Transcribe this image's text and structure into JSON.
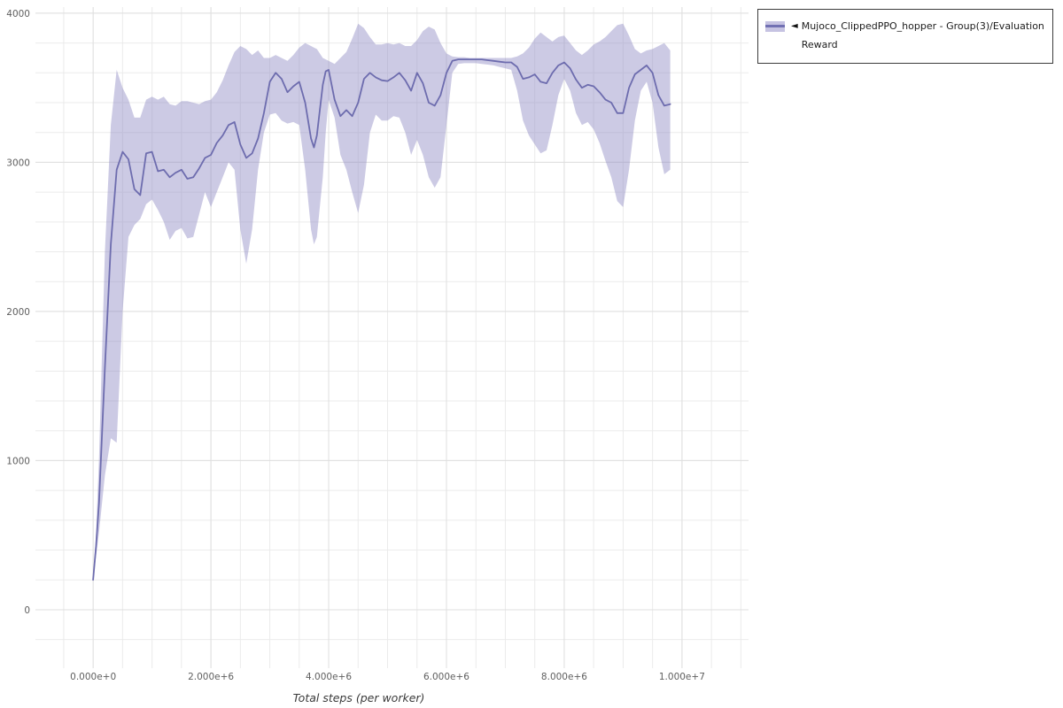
{
  "legend": {
    "arrow": "◄",
    "series_label": "Mujoco_ClippedPPO_hopper - Group(3)/Evaluation Reward"
  },
  "colors": {
    "line": "#6d6cae",
    "band_fill": "#8d89c4",
    "band_opacity": 0.45,
    "grid_minor": "#ebebeb",
    "grid_major": "#dfdfdf",
    "tick_text": "#5f5f5f",
    "legend_border": "#3c3c3c"
  },
  "chart_data": {
    "type": "line",
    "title": "",
    "xlabel": "Total steps (per worker)",
    "ylabel": "",
    "grid": true,
    "legend_position": "outside-top-right",
    "xlim": [
      -980000,
      11130000
    ],
    "ylim": [
      -392,
      4041
    ],
    "x_minor_step": 500000,
    "y_minor_step": 200,
    "x_ticks": {
      "values": [
        0,
        2000000,
        4000000,
        6000000,
        8000000,
        10000000
      ],
      "labels": [
        "0.000e+0",
        "2.000e+6",
        "4.000e+6",
        "6.000e+6",
        "8.000e+6",
        "1.000e+7"
      ]
    },
    "y_ticks": {
      "values": [
        0,
        1000,
        2000,
        3000,
        4000
      ],
      "labels": [
        "0",
        "1000",
        "2000",
        "3000",
        "4000"
      ]
    },
    "series": [
      {
        "name": "Mujoco_ClippedPPO_hopper - Group(3)/Evaluation Reward",
        "x": [
          0,
          50000.0,
          100000.0,
          200000.0,
          300000.0,
          400000.0,
          500000.0,
          600000.0,
          700000.0,
          800000.0,
          900000.0,
          1000000.0,
          1100000.0,
          1200000.0,
          1300000.0,
          1400000.0,
          1500000.0,
          1600000.0,
          1700000.0,
          1800000.0,
          1900000.0,
          2000000.0,
          2100000.0,
          2200000.0,
          2300000.0,
          2400000.0,
          2500000.0,
          2600000.0,
          2700000.0,
          2800000.0,
          2900000.0,
          3000000.0,
          3100000.0,
          3200000.0,
          3300000.0,
          3400000.0,
          3500000.0,
          3600000.0,
          3700000.0,
          3750000.0,
          3800000.0,
          3900000.0,
          3950000.0,
          4000000.0,
          4100000.0,
          4200000.0,
          4300000.0,
          4400000.0,
          4500000.0,
          4600000.0,
          4700000.0,
          4800000.0,
          4900000.0,
          5000000.0,
          5100000.0,
          5200000.0,
          5300000.0,
          5400000.0,
          5500000.0,
          5600000.0,
          5700000.0,
          5800000.0,
          5900000.0,
          6000000.0,
          6100000.0,
          6200000.0,
          6300000.0,
          6400000.0,
          6500000.0,
          6600000.0,
          6700000.0,
          6800000.0,
          6900000.0,
          7000000.0,
          7100000.0,
          7200000.0,
          7300000.0,
          7400000.0,
          7500000.0,
          7600000.0,
          7700000.0,
          7800000.0,
          7900000.0,
          8000000.0,
          8100000.0,
          8200000.0,
          8300000.0,
          8400000.0,
          8500000.0,
          8600000.0,
          8700000.0,
          8800000.0,
          8900000.0,
          9000000.0,
          9100000.0,
          9200000.0,
          9300000.0,
          9400000.0,
          9500000.0,
          9600000.0,
          9700000.0,
          9800000.0
        ],
        "mean": [
          200,
          430,
          720,
          1620,
          2450,
          2950,
          3070,
          3020,
          2820,
          2780,
          3060,
          3070,
          2940,
          2950,
          2900,
          2930,
          2950,
          2890,
          2900,
          2960,
          3030,
          3050,
          3130,
          3180,
          3250,
          3270,
          3120,
          3030,
          3060,
          3160,
          3330,
          3540,
          3600,
          3560,
          3470,
          3510,
          3540,
          3400,
          3160,
          3100,
          3180,
          3520,
          3610,
          3620,
          3420,
          3310,
          3350,
          3310,
          3400,
          3560,
          3600,
          3570,
          3550,
          3545,
          3570,
          3600,
          3550,
          3480,
          3600,
          3530,
          3400,
          3380,
          3450,
          3600,
          3680,
          3690,
          3690,
          3690,
          3690,
          3690,
          3685,
          3680,
          3675,
          3670,
          3670,
          3640,
          3560,
          3570,
          3590,
          3540,
          3530,
          3600,
          3650,
          3670,
          3630,
          3555,
          3500,
          3520,
          3510,
          3470,
          3420,
          3400,
          3330,
          3330,
          3500,
          3590,
          3620,
          3650,
          3600,
          3450,
          3380,
          3390
        ],
        "lower": [
          200,
          360,
          520,
          900,
          1150,
          1120,
          2000,
          2500,
          2580,
          2620,
          2720,
          2750,
          2680,
          2600,
          2480,
          2540,
          2560,
          2490,
          2500,
          2650,
          2800,
          2700,
          2800,
          2900,
          3000,
          2950,
          2550,
          2320,
          2550,
          2950,
          3200,
          3320,
          3330,
          3280,
          3260,
          3270,
          3250,
          2950,
          2550,
          2450,
          2500,
          2900,
          3200,
          3420,
          3300,
          3050,
          2950,
          2800,
          2660,
          2850,
          3200,
          3320,
          3280,
          3280,
          3310,
          3300,
          3200,
          3050,
          3150,
          3050,
          2900,
          2830,
          2900,
          3250,
          3600,
          3660,
          3665,
          3665,
          3665,
          3660,
          3655,
          3650,
          3640,
          3630,
          3620,
          3480,
          3280,
          3180,
          3120,
          3060,
          3080,
          3250,
          3450,
          3560,
          3480,
          3330,
          3250,
          3270,
          3220,
          3130,
          3010,
          2900,
          2740,
          2700,
          2950,
          3280,
          3480,
          3540,
          3400,
          3100,
          2920,
          2950
        ],
        "upper": [
          200,
          520,
          1020,
          2400,
          3250,
          3620,
          3500,
          3420,
          3300,
          3300,
          3420,
          3440,
          3420,
          3440,
          3390,
          3380,
          3410,
          3410,
          3400,
          3390,
          3410,
          3420,
          3470,
          3550,
          3650,
          3740,
          3780,
          3760,
          3720,
          3750,
          3700,
          3700,
          3720,
          3700,
          3680,
          3720,
          3770,
          3800,
          3780,
          3770,
          3760,
          3700,
          3690,
          3680,
          3660,
          3700,
          3740,
          3830,
          3930,
          3900,
          3840,
          3790,
          3790,
          3800,
          3790,
          3800,
          3780,
          3780,
          3820,
          3880,
          3910,
          3890,
          3800,
          3730,
          3710,
          3705,
          3705,
          3700,
          3700,
          3700,
          3700,
          3700,
          3700,
          3700,
          3700,
          3710,
          3730,
          3770,
          3830,
          3870,
          3840,
          3810,
          3840,
          3850,
          3800,
          3750,
          3720,
          3750,
          3790,
          3810,
          3840,
          3880,
          3920,
          3930,
          3850,
          3760,
          3730,
          3750,
          3760,
          3780,
          3800,
          3750
        ]
      }
    ]
  }
}
